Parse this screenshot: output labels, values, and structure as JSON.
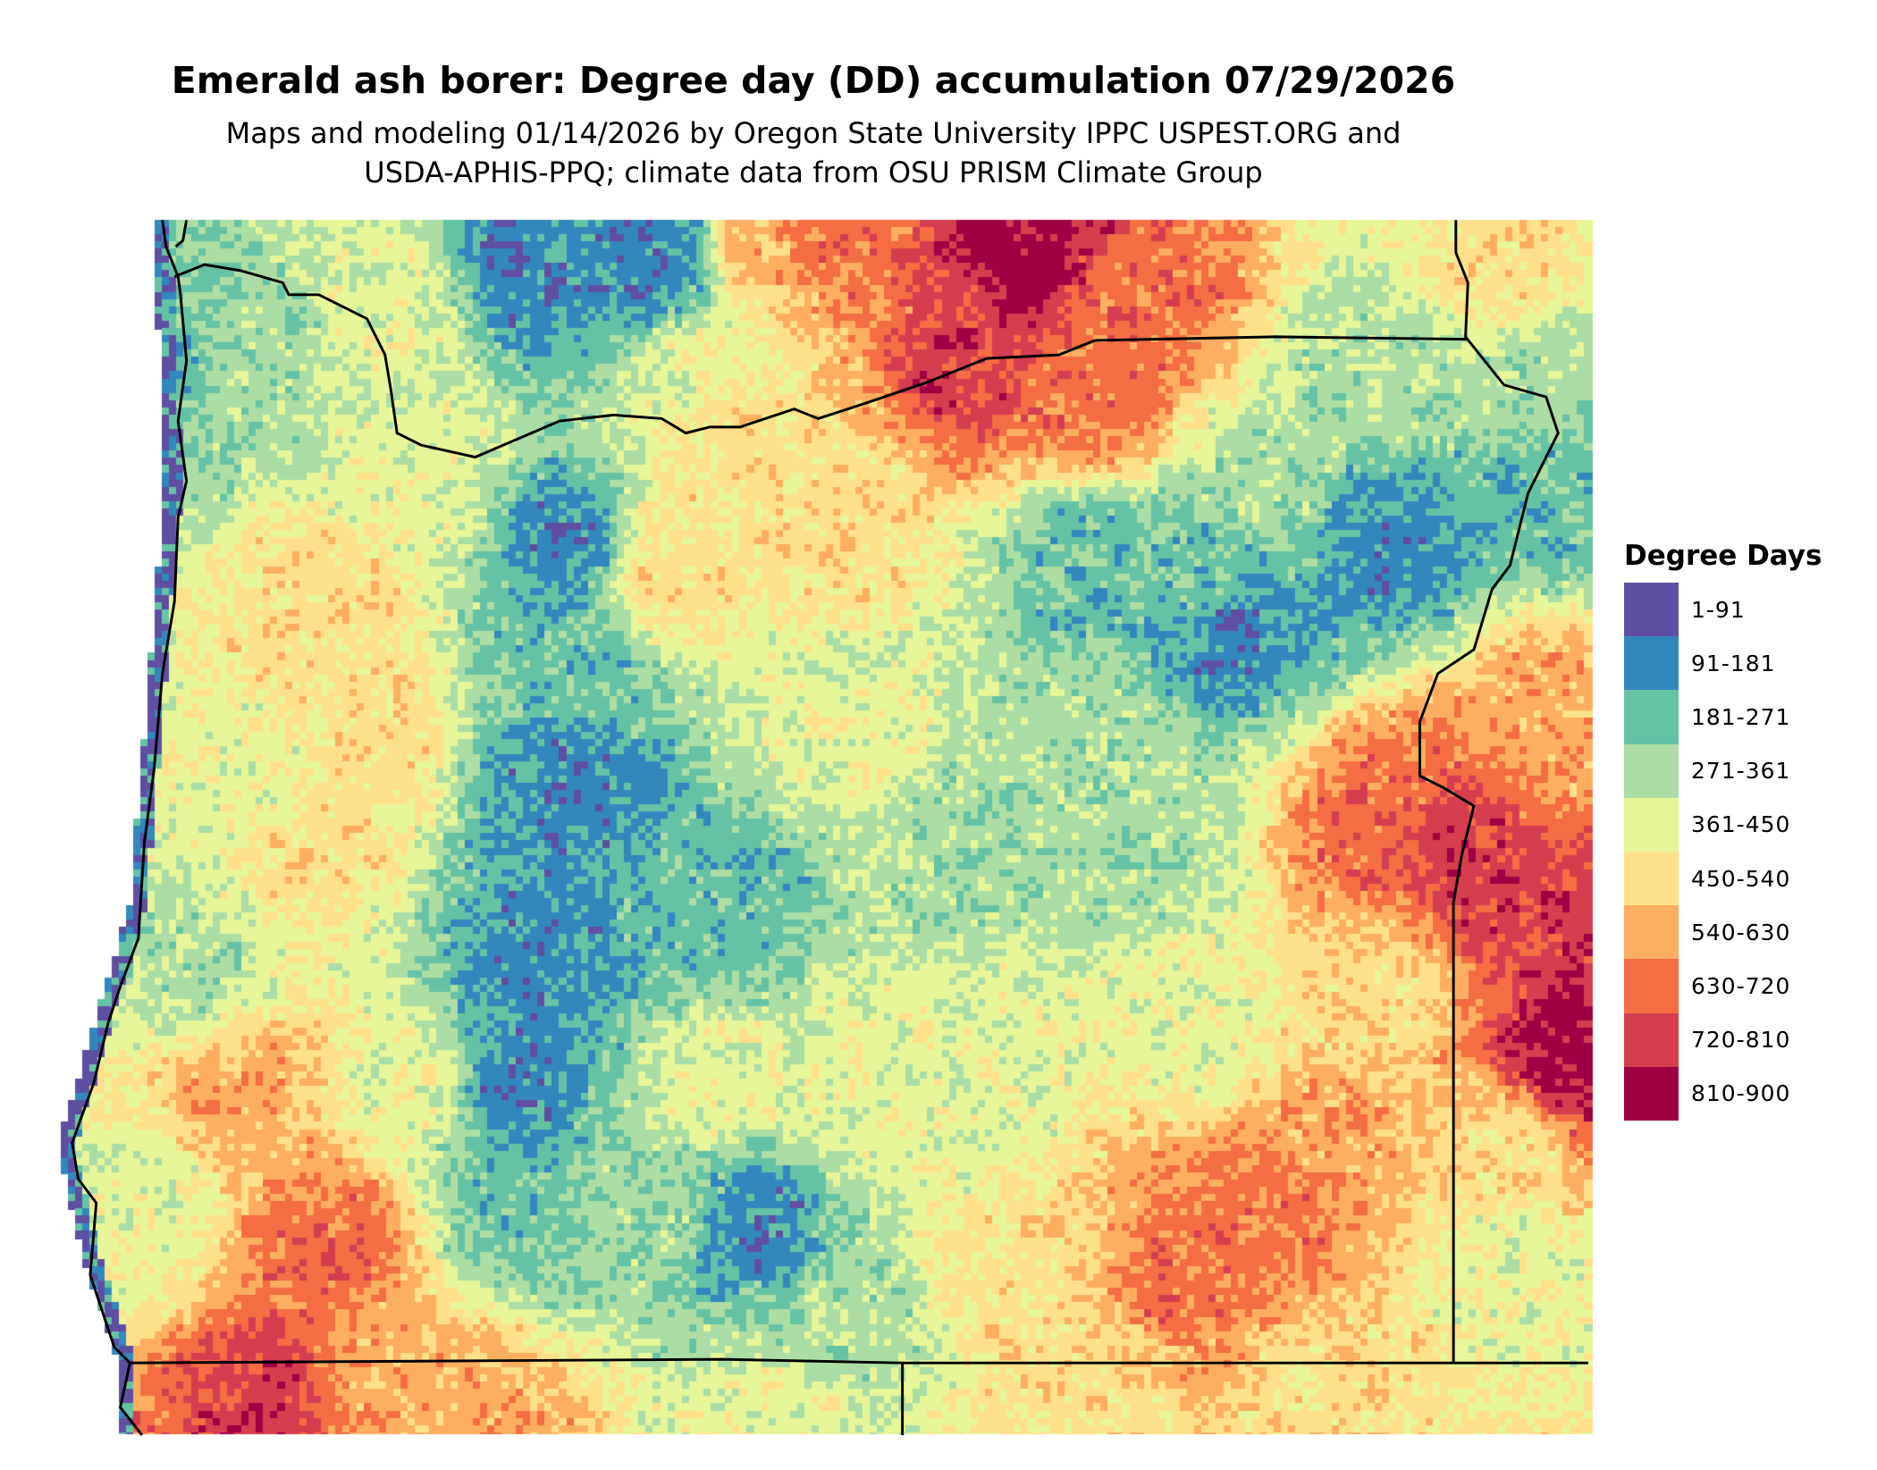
{
  "title": "Emerald ash borer: Degree day (DD) accumulation 07/29/2026",
  "subtitle_line1": "Maps and modeling 01/14/2026 by Oregon State University IPPC USPEST.ORG and",
  "subtitle_line2": "USDA-APHIS-PPQ; climate data from OSU PRISM Climate Group",
  "legend": {
    "title": "Degree Days",
    "classes": [
      {
        "label": "1-91",
        "color": "#5e4fa2"
      },
      {
        "label": "91-181",
        "color": "#3288bd"
      },
      {
        "label": "181-271",
        "color": "#66c2a5"
      },
      {
        "label": "271-361",
        "color": "#abdda4"
      },
      {
        "label": "361-450",
        "color": "#e6f598"
      },
      {
        "label": "450-540",
        "color": "#fee08b"
      },
      {
        "label": "540-630",
        "color": "#fdae61"
      },
      {
        "label": "630-720",
        "color": "#f46d43"
      },
      {
        "label": "720-810",
        "color": "#d53e4f"
      },
      {
        "label": "810-900",
        "color": "#9e0142"
      }
    ]
  },
  "map": {
    "region": "Oregon",
    "border_color": "#000000",
    "ocean_color": "#ffffff"
  }
}
